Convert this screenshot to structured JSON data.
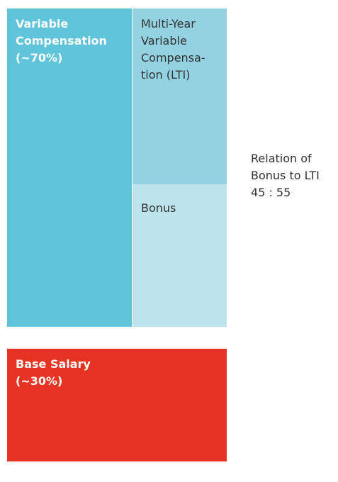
{
  "blocks": {
    "variable": {
      "lines": [
        "Variable",
        "Compensation",
        "(~70%)"
      ]
    },
    "lti": {
      "lines": [
        "Multi-Year",
        "Variable",
        "Compensa-",
        "tion (LTI)"
      ]
    },
    "bonus": {
      "lines": [
        "Bonus"
      ]
    },
    "base": {
      "lines": [
        "Base Salary",
        "(~30%)"
      ]
    }
  },
  "relation": {
    "lines": [
      "Relation of",
      "Bonus to LTI",
      "45 : 55"
    ]
  }
}
